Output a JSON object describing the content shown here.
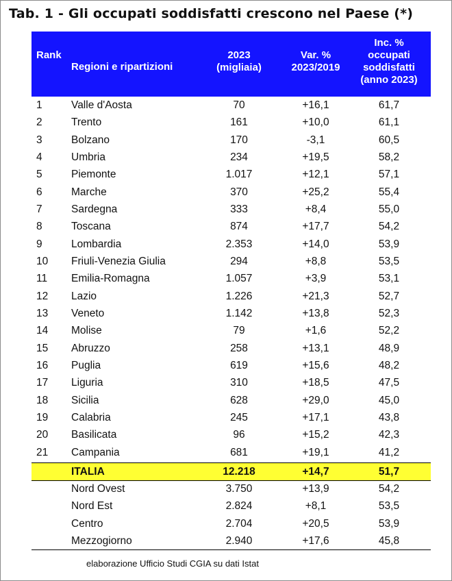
{
  "title": "Tab. 1 - Gli occupati soddisfatti crescono nel Paese (*)",
  "table": {
    "header": {
      "rank": "Rank",
      "region": "Regioni e ripartizioni",
      "value": [
        "2023",
        "(migliaia)"
      ],
      "var": [
        "Var. %",
        "2023/2019"
      ],
      "inc": [
        "Inc. %",
        "occupati",
        "soddisfatti",
        "(anno 2023)"
      ]
    },
    "rows": [
      [
        "1",
        "Valle d'Aosta",
        "70",
        "+16,1",
        "61,7"
      ],
      [
        "2",
        "Trento",
        "161",
        "+10,0",
        "61,1"
      ],
      [
        "3",
        "Bolzano",
        "170",
        "-3,1",
        "60,5"
      ],
      [
        "4",
        "Umbria",
        "234",
        "+19,5",
        "58,2"
      ],
      [
        "5",
        "Piemonte",
        "1.017",
        "+12,1",
        "57,1"
      ],
      [
        "6",
        "Marche",
        "370",
        "+25,2",
        "55,4"
      ],
      [
        "7",
        "Sardegna",
        "333",
        "+8,4",
        "55,0"
      ],
      [
        "8",
        "Toscana",
        "874",
        "+17,7",
        "54,2"
      ],
      [
        "9",
        "Lombardia",
        "2.353",
        "+14,0",
        "53,9"
      ],
      [
        "10",
        "Friuli-Venezia Giulia",
        "294",
        "+8,8",
        "53,5"
      ],
      [
        "11",
        "Emilia-Romagna",
        "1.057",
        "+3,9",
        "53,1"
      ],
      [
        "12",
        "Lazio",
        "1.226",
        "+21,3",
        "52,7"
      ],
      [
        "13",
        "Veneto",
        "1.142",
        "+13,8",
        "52,3"
      ],
      [
        "14",
        "Molise",
        "79",
        "+1,6",
        "52,2"
      ],
      [
        "15",
        "Abruzzo",
        "258",
        "+13,1",
        "48,9"
      ],
      [
        "16",
        "Puglia",
        "619",
        "+15,6",
        "48,2"
      ],
      [
        "17",
        "Liguria",
        "310",
        "+18,5",
        "47,5"
      ],
      [
        "18",
        "Sicilia",
        "628",
        "+29,0",
        "45,0"
      ],
      [
        "19",
        "Calabria",
        "245",
        "+17,1",
        "43,8"
      ],
      [
        "20",
        "Basilicata",
        "96",
        "+15,2",
        "42,3"
      ],
      [
        "21",
        "Campania",
        "681",
        "+19,1",
        "41,2"
      ]
    ],
    "total": [
      "ITALIA",
      "12.218",
      "+14,7",
      "51,7"
    ],
    "areas": [
      [
        "Nord Ovest",
        "3.750",
        "+13,9",
        "54,2"
      ],
      [
        "Nord Est",
        "2.824",
        "+8,1",
        "53,5"
      ],
      [
        "Centro",
        "2.704",
        "+20,5",
        "53,9"
      ],
      [
        "Mezzogiorno",
        "2.940",
        "+17,6",
        "45,8"
      ]
    ]
  },
  "note": "elaborazione Ufficio Studi CGIA su dati Istat"
}
